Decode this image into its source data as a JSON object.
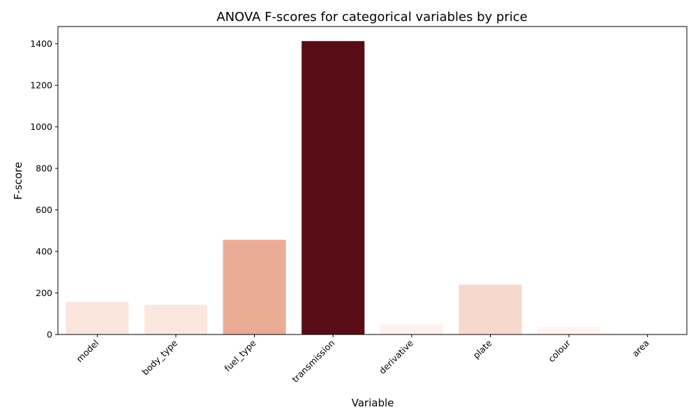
{
  "chart_data": {
    "type": "bar",
    "title": "ANOVA F-scores for categorical variables by price",
    "xlabel": "Variable",
    "ylabel": "F-score",
    "categories": [
      "model",
      "body_type",
      "fuel_type",
      "transmission",
      "derivative",
      "plate",
      "colour",
      "area"
    ],
    "values": [
      156,
      143,
      456,
      1413,
      48,
      240,
      36,
      3
    ],
    "colors": [
      "#fae5dc",
      "#fae8df",
      "#ebac96",
      "#5a0c16",
      "#fff1ed",
      "#f7d8cc",
      "#fff3ef",
      "#fff5f0"
    ],
    "ylim": [
      0,
      1483
    ],
    "yticks": [
      0,
      200,
      400,
      600,
      800,
      1000,
      1200,
      1400
    ],
    "grid": false,
    "legend": "none"
  }
}
